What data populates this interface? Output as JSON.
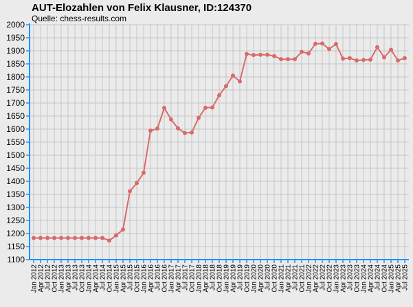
{
  "chart_data": {
    "type": "line",
    "title": "AUT-Elozahlen von Felix Klausner, ID:124370",
    "subtitle": "Quelle: chess-results.com",
    "xlabel": "",
    "ylabel": "",
    "ylim": [
      1100,
      2000
    ],
    "ytick_step": 50,
    "grid": true,
    "line_color": "#d96a6a",
    "marker_color": "#d96a6a",
    "axis_color": "#1e90ff",
    "background_color": "#ebebeb",
    "categories": [
      "Jan 2012",
      "Apr 2012",
      "Jul 2012",
      "Oct 2012",
      "Jan 2013",
      "Apr 2013",
      "Jul 2013",
      "Oct 2013",
      "Jan 2014",
      "Apr 2014",
      "Jul 2014",
      "Oct 2014",
      "Jan 2015",
      "Apr 2015",
      "Jul 2015",
      "Oct 2015",
      "Jan 2016",
      "Apr 2016",
      "Jul 2016",
      "Oct 2016",
      "Jan 2017",
      "Apr 2017",
      "Jul 2017",
      "Oct 2017",
      "Jan 2018",
      "Apr 2018",
      "Jul 2018",
      "Oct 2018",
      "Jan 2019",
      "Apr 2019",
      "Jul 2019",
      "Oct 2019",
      "Jan 2020",
      "Apr 2020",
      "Jul 2020",
      "Oct 2020",
      "Jan 2021",
      "Apr 2021",
      "Jul 2021",
      "Oct 2021",
      "Jan 2022",
      "Apr 2022",
      "Jul 2022",
      "Oct 2022",
      "Jan 2023",
      "Apr 2023",
      "Jul 2023",
      "Oct 2023",
      "Jan 2024",
      "Apr 2024",
      "Jul 2024",
      "Oct 2024",
      "Jan 2025",
      "Apr 2025",
      "Jul 2025"
    ],
    "values": [
      1183,
      1183,
      1183,
      1183,
      1183,
      1183,
      1183,
      1183,
      1183,
      1183,
      1183,
      1173,
      1193,
      1215,
      1362,
      1393,
      1433,
      1594,
      1602,
      1681,
      1637,
      1603,
      1585,
      1587,
      1643,
      1682,
      1683,
      1730,
      1765,
      1805,
      1783,
      1888,
      1884,
      1885,
      1885,
      1880,
      1868,
      1868,
      1868,
      1896,
      1890,
      1927,
      1928,
      1907,
      1926,
      1870,
      1872,
      1863,
      1865,
      1866,
      1914,
      1875,
      1904,
      1863,
      1872
    ]
  }
}
